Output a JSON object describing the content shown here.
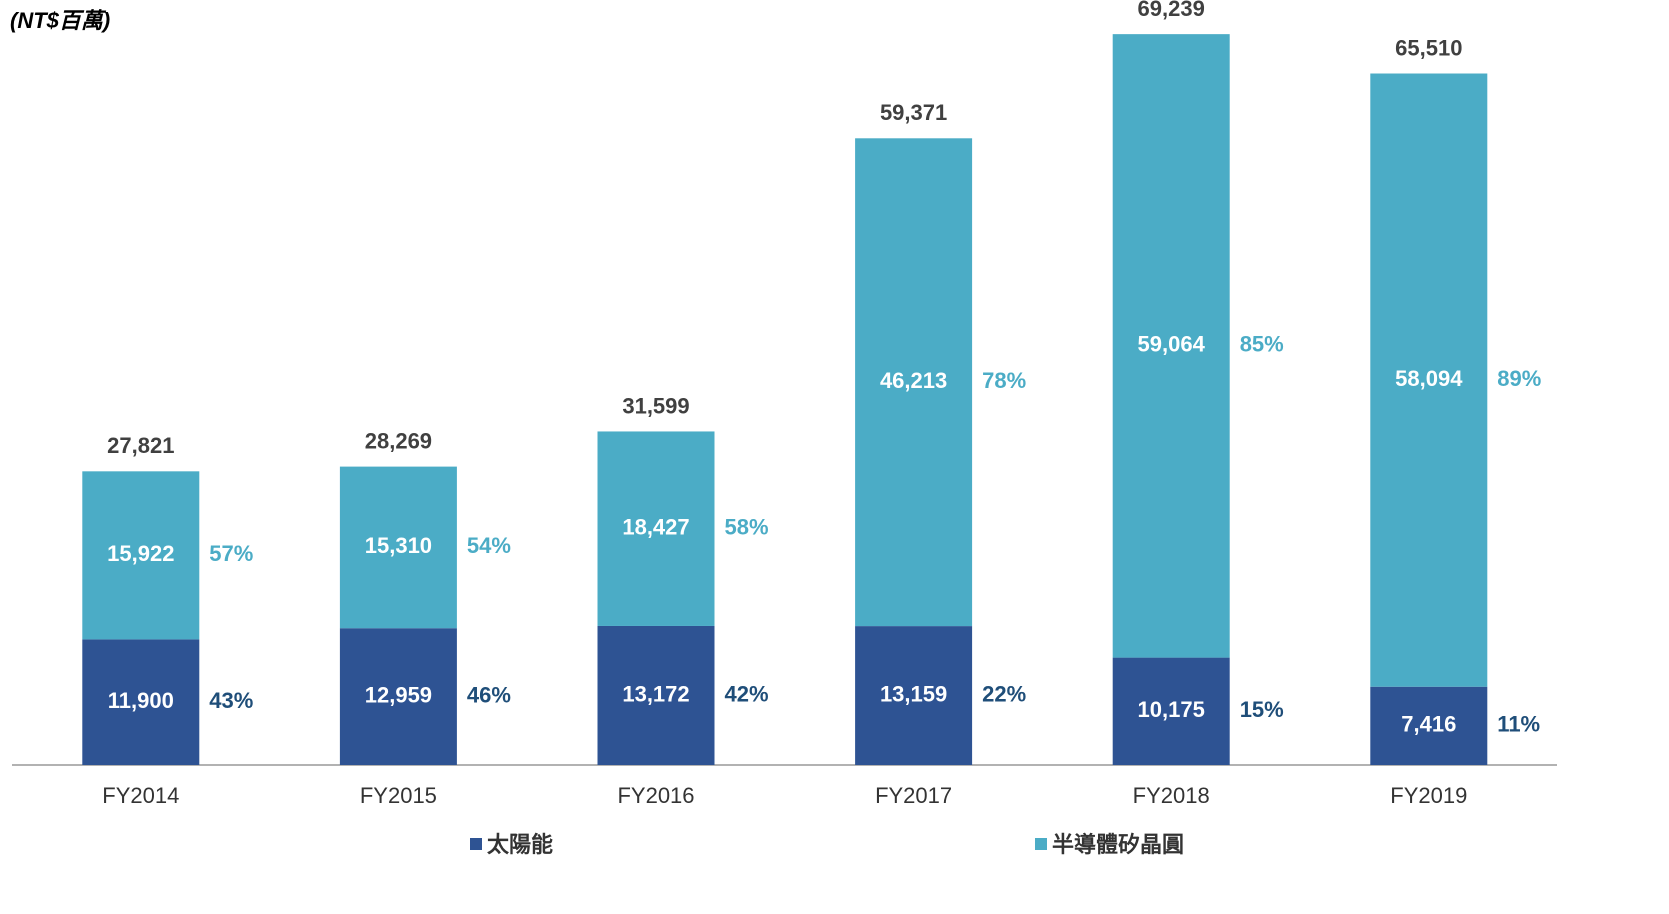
{
  "chart_data": {
    "type": "stacked_bar",
    "unit_label": "(NT$百萬)",
    "categories": [
      "FY2014",
      "FY2015",
      "FY2016",
      "FY2017",
      "FY2018",
      "FY2019"
    ],
    "series": [
      {
        "name": "太陽能",
        "color": "#2e5393",
        "share_color": "#1f4e79",
        "values": [
          11900,
          12959,
          13172,
          13159,
          10175,
          7416
        ],
        "value_labels": [
          "11,900",
          "12,959",
          "13,172",
          "13,159",
          "10,175",
          "7,416"
        ],
        "shares": [
          43,
          46,
          42,
          22,
          15,
          11
        ],
        "share_labels": [
          "43%",
          "46%",
          "42%",
          "22%",
          "15%",
          "11%"
        ]
      },
      {
        "name": "半導體矽晶圓",
        "color": "#4bacc6",
        "share_color": "#4bacc6",
        "values": [
          15922,
          15310,
          18427,
          46213,
          59064,
          58094
        ],
        "value_labels": [
          "15,922",
          "15,310",
          "18,427",
          "46,213",
          "59,064",
          "58,094"
        ],
        "shares": [
          57,
          54,
          58,
          78,
          85,
          89
        ],
        "share_labels": [
          "57%",
          "54%",
          "58%",
          "78%",
          "85%",
          "89%"
        ]
      }
    ],
    "totals": [
      27821,
      28269,
      31599,
      59371,
      69239,
      65510
    ],
    "total_labels": [
      "27,821",
      "28,269",
      "31,599",
      "59,371",
      "69,239",
      "65,510"
    ],
    "ylim": [
      0,
      72000
    ]
  }
}
